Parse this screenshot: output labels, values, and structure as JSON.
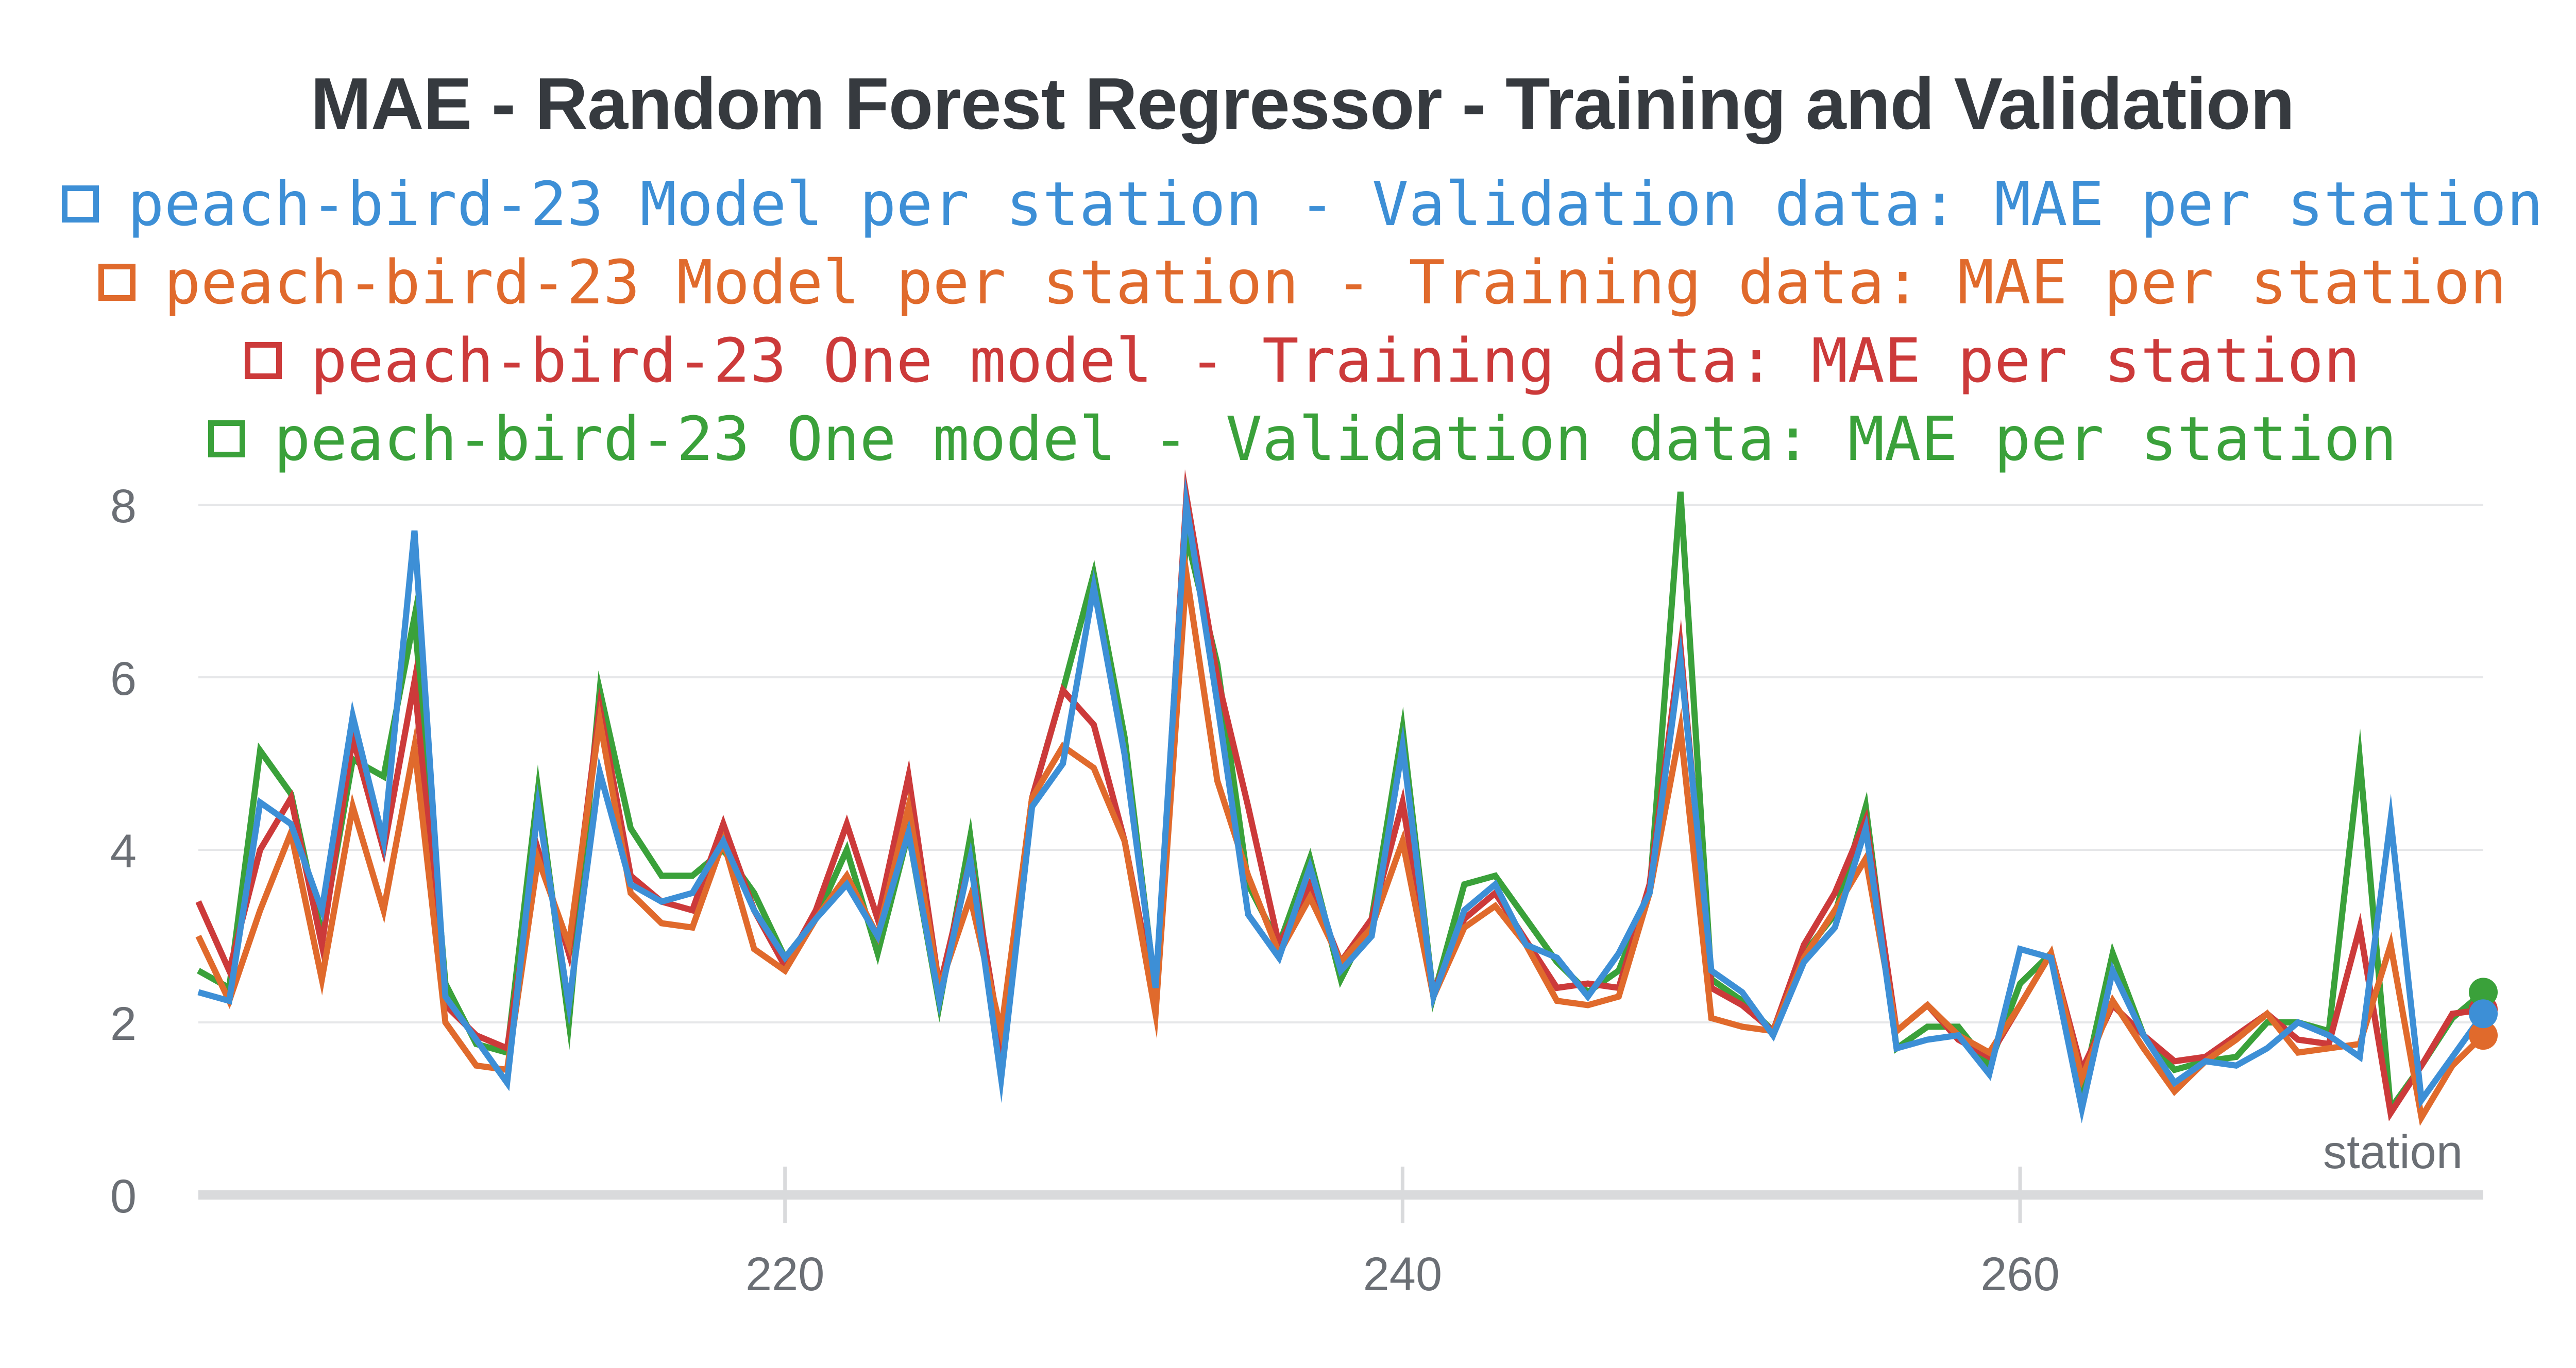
{
  "chart_data": {
    "type": "line",
    "title": "MAE - Random Forest Regressor - Training and Validation",
    "xlabel": "station",
    "ylabel": "",
    "xlim": [
      201,
      275
    ],
    "ylim": [
      0,
      8
    ],
    "x_ticks": [
      "220",
      "240",
      "260"
    ],
    "y_ticks": [
      "0",
      "2",
      "4",
      "6",
      "8"
    ],
    "grid": true,
    "legend_position": "top",
    "x": [
      201,
      202,
      203,
      204,
      205,
      206,
      207,
      208,
      209,
      210,
      211,
      212,
      213,
      214,
      215,
      216,
      217,
      218,
      219,
      220,
      221,
      222,
      223,
      224,
      225,
      226,
      227,
      228,
      229,
      230,
      231,
      232,
      233,
      234,
      235,
      236,
      237,
      238,
      239,
      240,
      241,
      242,
      243,
      244,
      245,
      246,
      247,
      248,
      249,
      250,
      251,
      252,
      253,
      254,
      255,
      256,
      257,
      258,
      259,
      260,
      261,
      262,
      263,
      264,
      265,
      266,
      267,
      268,
      269,
      270,
      271,
      272,
      273,
      274,
      275
    ],
    "series": [
      {
        "name": "peach-bird-23 Model per station - Validation data: MAE per station",
        "color": "#3d8fd6",
        "values": [
          2.35,
          2.25,
          4.55,
          4.3,
          3.3,
          5.55,
          4.1,
          7.7,
          2.3,
          1.8,
          1.3,
          4.5,
          2.2,
          4.9,
          3.6,
          3.4,
          3.5,
          4.1,
          3.3,
          2.75,
          3.2,
          3.6,
          3.0,
          4.2,
          2.25,
          3.9,
          1.35,
          4.5,
          5.0,
          7.05,
          5.1,
          2.4,
          8.0,
          5.7,
          3.25,
          2.75,
          3.8,
          2.6,
          3.0,
          5.2,
          2.3,
          3.3,
          3.6,
          2.9,
          2.75,
          2.3,
          2.8,
          3.5,
          6.2,
          2.6,
          2.35,
          1.85,
          2.7,
          3.1,
          4.25,
          1.7,
          1.8,
          1.85,
          1.4,
          2.85,
          2.75,
          1.0,
          2.6,
          1.85,
          1.3,
          1.55,
          1.5,
          1.7,
          2.0,
          1.85,
          1.6,
          4.35,
          1.1,
          1.6,
          2.1
        ]
      },
      {
        "name": "peach-bird-23 Model per station - Training data: MAE per station",
        "color": "#e06a2c",
        "values": [
          3.0,
          2.25,
          3.3,
          4.2,
          2.5,
          4.5,
          3.3,
          5.2,
          2.0,
          1.5,
          1.45,
          3.9,
          2.9,
          5.5,
          3.5,
          3.15,
          3.1,
          4.1,
          2.85,
          2.6,
          3.2,
          3.7,
          3.0,
          4.5,
          2.4,
          3.45,
          1.9,
          4.6,
          5.2,
          4.95,
          4.1,
          2.1,
          7.2,
          4.8,
          3.7,
          2.8,
          3.45,
          2.7,
          3.1,
          4.1,
          2.3,
          3.1,
          3.35,
          2.9,
          2.25,
          2.2,
          2.3,
          3.5,
          5.4,
          2.05,
          1.95,
          1.9,
          2.75,
          3.3,
          3.9,
          1.9,
          2.2,
          1.85,
          1.65,
          2.2,
          2.8,
          1.35,
          2.25,
          1.7,
          1.2,
          1.55,
          1.8,
          2.1,
          1.65,
          1.7,
          1.75,
          2.9,
          0.9,
          1.5,
          1.85
        ]
      },
      {
        "name": "peach-bird-23 One model - Training data: MAE per station",
        "color": "#cc3a3a",
        "values": [
          3.4,
          2.6,
          4.0,
          4.6,
          2.9,
          5.3,
          4.0,
          5.95,
          2.2,
          1.85,
          1.7,
          4.0,
          2.8,
          5.65,
          3.7,
          3.4,
          3.3,
          4.3,
          3.3,
          2.65,
          3.3,
          4.3,
          3.2,
          4.85,
          2.4,
          3.9,
          1.75,
          4.6,
          5.85,
          5.45,
          4.1,
          2.25,
          8.1,
          6.0,
          4.5,
          2.9,
          3.6,
          2.7,
          3.2,
          4.55,
          2.35,
          3.2,
          3.5,
          2.95,
          2.4,
          2.45,
          2.4,
          3.6,
          6.35,
          2.4,
          2.2,
          1.9,
          2.9,
          3.5,
          4.35,
          1.9,
          2.2,
          1.8,
          1.6,
          2.2,
          2.8,
          1.45,
          2.2,
          1.85,
          1.55,
          1.6,
          1.85,
          2.1,
          1.8,
          1.75,
          3.1,
          0.95,
          1.5,
          2.1,
          2.15
        ]
      },
      {
        "name": "peach-bird-23 One model - Validation data: MAE per station",
        "color": "#3aa13a",
        "values": [
          2.6,
          2.4,
          5.15,
          4.65,
          3.0,
          5.05,
          4.85,
          6.7,
          2.45,
          1.75,
          1.65,
          4.7,
          2.0,
          5.85,
          4.25,
          3.7,
          3.7,
          4.0,
          3.5,
          2.75,
          3.2,
          4.0,
          2.8,
          4.2,
          2.2,
          4.15,
          1.4,
          4.6,
          5.85,
          7.2,
          5.3,
          2.35,
          7.65,
          6.15,
          3.6,
          2.9,
          3.9,
          2.5,
          3.2,
          5.4,
          2.3,
          3.6,
          3.7,
          3.2,
          2.7,
          2.35,
          2.6,
          3.5,
          8.15,
          2.5,
          2.25,
          1.9,
          2.8,
          3.25,
          4.5,
          1.7,
          1.95,
          1.95,
          1.5,
          2.45,
          2.8,
          1.2,
          2.8,
          1.85,
          1.45,
          1.55,
          1.6,
          2.0,
          2.0,
          1.9,
          5.05,
          1.0,
          1.5,
          2.05,
          2.35
        ]
      }
    ]
  }
}
